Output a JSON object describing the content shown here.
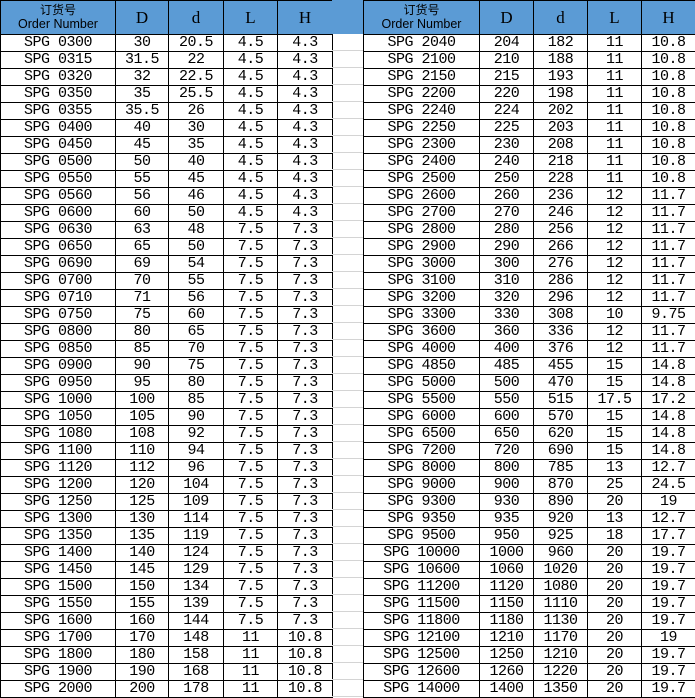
{
  "header": {
    "order_cn": "订货号",
    "order_en": "Order Number",
    "D": "D",
    "d": "d",
    "L": "L",
    "H": "H"
  },
  "colors": {
    "header_bg": "#5B9BD5",
    "grid": "#000000"
  },
  "left_rows": [
    [
      "SPG 0300",
      "30",
      "20.5",
      "4.5",
      "4.3"
    ],
    [
      "SPG 0315",
      "31.5",
      "22",
      "4.5",
      "4.3"
    ],
    [
      "SPG 0320",
      "32",
      "22.5",
      "4.5",
      "4.3"
    ],
    [
      "SPG 0350",
      "35",
      "25.5",
      "4.5",
      "4.3"
    ],
    [
      "SPG 0355",
      "35.5",
      "26",
      "4.5",
      "4.3"
    ],
    [
      "SPG 0400",
      "40",
      "30",
      "4.5",
      "4.3"
    ],
    [
      "SPG 0450",
      "45",
      "35",
      "4.5",
      "4.3"
    ],
    [
      "SPG 0500",
      "50",
      "40",
      "4.5",
      "4.3"
    ],
    [
      "SPG 0550",
      "55",
      "45",
      "4.5",
      "4.3"
    ],
    [
      "SPG 0560",
      "56",
      "46",
      "4.5",
      "4.3"
    ],
    [
      "SPG 0600",
      "60",
      "50",
      "4.5",
      "4.3"
    ],
    [
      "SPG 0630",
      "63",
      "48",
      "7.5",
      "7.3"
    ],
    [
      "SPG 0650",
      "65",
      "50",
      "7.5",
      "7.3"
    ],
    [
      "SPG 0690",
      "69",
      "54",
      "7.5",
      "7.3"
    ],
    [
      "SPG 0700",
      "70",
      "55",
      "7.5",
      "7.3"
    ],
    [
      "SPG 0710",
      "71",
      "56",
      "7.5",
      "7.3"
    ],
    [
      "SPG 0750",
      "75",
      "60",
      "7.5",
      "7.3"
    ],
    [
      "SPG 0800",
      "80",
      "65",
      "7.5",
      "7.3"
    ],
    [
      "SPG 0850",
      "85",
      "70",
      "7.5",
      "7.3"
    ],
    [
      "SPG 0900",
      "90",
      "75",
      "7.5",
      "7.3"
    ],
    [
      "SPG 0950",
      "95",
      "80",
      "7.5",
      "7.3"
    ],
    [
      "SPG 1000",
      "100",
      "85",
      "7.5",
      "7.3"
    ],
    [
      "SPG 1050",
      "105",
      "90",
      "7.5",
      "7.3"
    ],
    [
      "SPG 1080",
      "108",
      "92",
      "7.5",
      "7.3"
    ],
    [
      "SPG 1100",
      "110",
      "94",
      "7.5",
      "7.3"
    ],
    [
      "SPG 1120",
      "112",
      "96",
      "7.5",
      "7.3"
    ],
    [
      "SPG 1200",
      "120",
      "104",
      "7.5",
      "7.3"
    ],
    [
      "SPG 1250",
      "125",
      "109",
      "7.5",
      "7.3"
    ],
    [
      "SPG 1300",
      "130",
      "114",
      "7.5",
      "7.3"
    ],
    [
      "SPG 1350",
      "135",
      "119",
      "7.5",
      "7.3"
    ],
    [
      "SPG 1400",
      "140",
      "124",
      "7.5",
      "7.3"
    ],
    [
      "SPG 1450",
      "145",
      "129",
      "7.5",
      "7.3"
    ],
    [
      "SPG 1500",
      "150",
      "134",
      "7.5",
      "7.3"
    ],
    [
      "SPG 1550",
      "155",
      "139",
      "7.5",
      "7.3"
    ],
    [
      "SPG 1600",
      "160",
      "144",
      "7.5",
      "7.3"
    ],
    [
      "SPG 1700",
      "170",
      "148",
      "11",
      "10.8"
    ],
    [
      "SPG 1800",
      "180",
      "158",
      "11",
      "10.8"
    ],
    [
      "SPG 1900",
      "190",
      "168",
      "11",
      "10.8"
    ],
    [
      "SPG 2000",
      "200",
      "178",
      "11",
      "10.8"
    ]
  ],
  "right_rows": [
    [
      "SPG 2040",
      "204",
      "182",
      "11",
      "10.8"
    ],
    [
      "SPG 2100",
      "210",
      "188",
      "11",
      "10.8"
    ],
    [
      "SPG 2150",
      "215",
      "193",
      "11",
      "10.8"
    ],
    [
      "SPG 2200",
      "220",
      "198",
      "11",
      "10.8"
    ],
    [
      "SPG 2240",
      "224",
      "202",
      "11",
      "10.8"
    ],
    [
      "SPG 2250",
      "225",
      "203",
      "11",
      "10.8"
    ],
    [
      "SPG 2300",
      "230",
      "208",
      "11",
      "10.8"
    ],
    [
      "SPG 2400",
      "240",
      "218",
      "11",
      "10.8"
    ],
    [
      "SPG 2500",
      "250",
      "228",
      "11",
      "10.8"
    ],
    [
      "SPG 2600",
      "260",
      "236",
      "12",
      "11.7"
    ],
    [
      "SPG 2700",
      "270",
      "246",
      "12",
      "11.7"
    ],
    [
      "SPG 2800",
      "280",
      "256",
      "12",
      "11.7"
    ],
    [
      "SPG 2900",
      "290",
      "266",
      "12",
      "11.7"
    ],
    [
      "SPG 3000",
      "300",
      "276",
      "12",
      "11.7"
    ],
    [
      "SPG 3100",
      "310",
      "286",
      "12",
      "11.7"
    ],
    [
      "SPG 3200",
      "320",
      "296",
      "12",
      "11.7"
    ],
    [
      "SPG 3300",
      "330",
      "308",
      "10",
      "9.75"
    ],
    [
      "SPG 3600",
      "360",
      "336",
      "12",
      "11.7"
    ],
    [
      "SPG 4000",
      "400",
      "376",
      "12",
      "11.7"
    ],
    [
      "SPG 4850",
      "485",
      "455",
      "15",
      "14.8"
    ],
    [
      "SPG 5000",
      "500",
      "470",
      "15",
      "14.8"
    ],
    [
      "SPG 5500",
      "550",
      "515",
      "17.5",
      "17.2"
    ],
    [
      "SPG 6000",
      "600",
      "570",
      "15",
      "14.8"
    ],
    [
      "SPG 6500",
      "650",
      "620",
      "15",
      "14.8"
    ],
    [
      "SPG 7200",
      "720",
      "690",
      "15",
      "14.8"
    ],
    [
      "SPG 8000",
      "800",
      "785",
      "13",
      "12.7"
    ],
    [
      "SPG 9000",
      "900",
      "870",
      "25",
      "24.5"
    ],
    [
      "SPG 9300",
      "930",
      "890",
      "20",
      "19"
    ],
    [
      "SPG 9350",
      "935",
      "920",
      "13",
      "12.7"
    ],
    [
      "SPG 9500",
      "950",
      "925",
      "18",
      "17.7"
    ],
    [
      "SPG 10000",
      "1000",
      "960",
      "20",
      "19.7"
    ],
    [
      "SPG 10600",
      "1060",
      "1020",
      "20",
      "19.7"
    ],
    [
      "SPG 11200",
      "1120",
      "1080",
      "20",
      "19.7"
    ],
    [
      "SPG 11500",
      "1150",
      "1110",
      "20",
      "19.7"
    ],
    [
      "SPG 11800",
      "1180",
      "1130",
      "20",
      "19.7"
    ],
    [
      "SPG 12100",
      "1210",
      "1170",
      "20",
      "19"
    ],
    [
      "SPG 12500",
      "1250",
      "1210",
      "20",
      "19.7"
    ],
    [
      "SPG 12600",
      "1260",
      "1220",
      "20",
      "19.7"
    ],
    [
      "SPG 14000",
      "1400",
      "1350",
      "20",
      "19.7"
    ]
  ]
}
